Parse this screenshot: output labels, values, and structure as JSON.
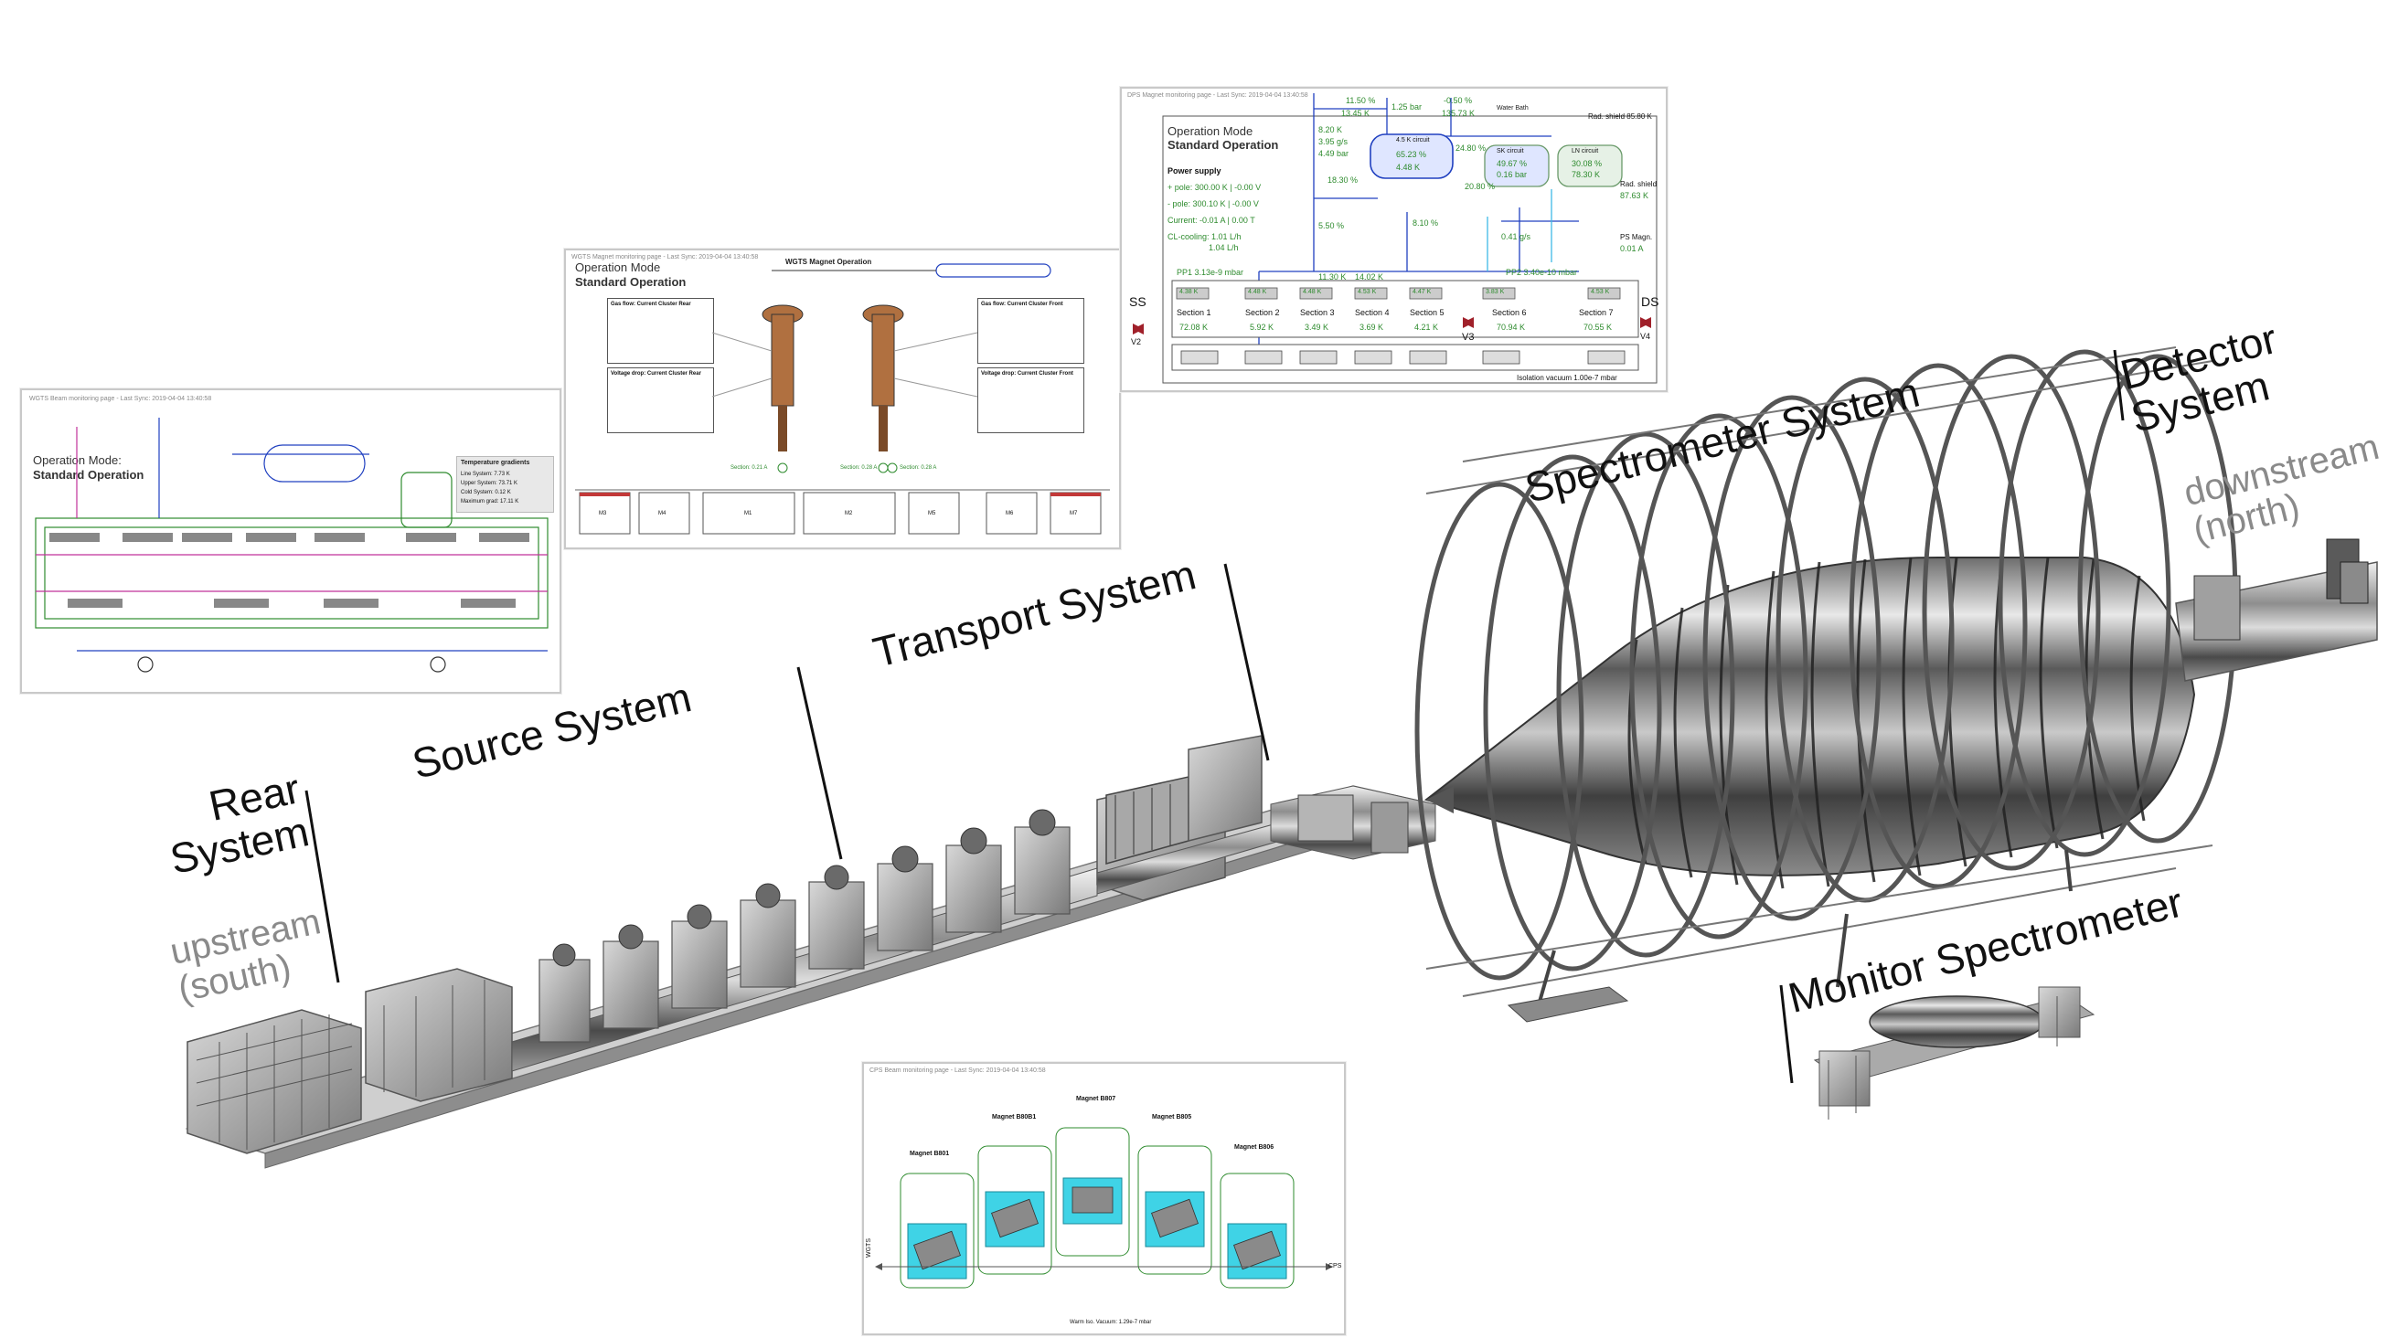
{
  "labels": {
    "rear_system": "Rear\nSystem",
    "upstream": "upstream\n(south)",
    "source_system": "Source System",
    "transport_system": "Transport System",
    "spectrometer_system": "Spectrometer System",
    "detector_system": "Detector\nSystem",
    "downstream": "downstream\n(north)",
    "monitor_spectrometer": "Monitor Spectrometer"
  },
  "panel_rear": {
    "header": "WGTS Beam monitoring page - Last Sync: 2019-04-04 13:40:58",
    "mode_label": "Operation Mode:",
    "mode_value": "Standard Operation",
    "temp_title": "Temperature gradients",
    "temp_rows": [
      "Line System: 7.73 K",
      "Upper System: 73.71 K",
      "Cold System: 0.12 K",
      "Maximum grad: 17.11 K"
    ]
  },
  "panel_wgts": {
    "header": "WGTS Magnet monitoring page - Last Sync: 2019-04-04 13:40:58",
    "mode_label": "Operation Mode",
    "mode_value": "Standard Operation",
    "title": "WGTS Magnet Operation",
    "box_left_title": "Gas flow: Current Cluster Rear",
    "box_right_title": "Gas flow: Current Cluster Front",
    "box_left2_title": "Voltage drop: Current Cluster Rear",
    "box_right2_title": "Voltage drop: Current Cluster Front",
    "magnets": [
      "M3",
      "M4",
      "M1",
      "M2",
      "M5",
      "M6",
      "M7"
    ],
    "readout_left": "Section: 0.21 A",
    "readout_mid": "Section: 0.28 A",
    "readout_right": "Section: 0.28 A"
  },
  "panel_dps": {
    "header": "DPS Magnet monitoring page - Last Sync: 2019-04-04 13:40:58",
    "mode_label": "Operation Mode",
    "mode_value": "Standard Operation",
    "power_supply": "Power supply",
    "plus_pole": "+ pole: 300.00 K | -0.00 V",
    "minus_pole": "- pole: 300.10 K | -0.00 V",
    "current": "Current: -0.01 A | 0.00 T",
    "cl_cooling": "CL-cooling: 1.01 L/h",
    "cl_cooling2": "1.04 L/h",
    "top_vals": [
      "11.50 %",
      "13.45 K",
      "1.25 bar",
      "-0.50 %",
      "135.73 K",
      "Water Bath"
    ],
    "left_vals": [
      "8.20 K",
      "3.95 g/s",
      "4.49 bar"
    ],
    "circuit_title": "4.5 K circuit",
    "circuit_vals": [
      "65.23 %",
      "4.48 K"
    ],
    "sk_circuit": "SK circuit",
    "sk_vals": [
      "49.67 %",
      "0.16 bar"
    ],
    "ln_circuit": "LN circuit",
    "ln_vals": [
      "30.08 %",
      "78.30 K"
    ],
    "rad_shield": "Rad. shield 85.80 K",
    "rad_shield2_label": "Rad. shield",
    "rad_shield2_val": "87.63 K",
    "ps_magn_label": "PS Magn.",
    "ps_magn_val": "0.01 A",
    "pct_a": "24.80 %",
    "pct_b": "18.30 %",
    "pct_c": "20.80 %",
    "pct_d": "5.50 %",
    "pct_e": "8.10 %",
    "gs": "0.41 g/s",
    "pp1": "PP1 3.13e-9 mbar",
    "pp2": "PP2 3.40e-10 mbar",
    "ss": "SS",
    "ds": "DS",
    "v2": "V2",
    "v3": "V3",
    "v4": "V4",
    "mid_vals": [
      "11.30 K",
      "14.02 K"
    ],
    "sensors": [
      "4.38 K",
      "4.48 K",
      "4.48 K",
      "4.53 K",
      "4.47 K",
      "3.83 K",
      "4.53 K"
    ],
    "sections": [
      {
        "name": "Section 1",
        "temp": "72.08 K"
      },
      {
        "name": "Section 2",
        "temp": "5.92 K"
      },
      {
        "name": "Section 3",
        "temp": "3.49 K"
      },
      {
        "name": "Section 4",
        "temp": "3.69 K"
      },
      {
        "name": "Section 5",
        "temp": "4.21 K"
      },
      {
        "name": "Section 6",
        "temp": "70.94 K"
      },
      {
        "name": "Section 7",
        "temp": "70.55 K"
      }
    ],
    "isolation": "Isolation vacuum 1.00e-7 mbar"
  },
  "panel_cps": {
    "header": "CPS Beam monitoring page - Last Sync: 2019-04-04 13:40:58",
    "magnets": [
      "Magnet B801",
      "Magnet B80B1",
      "Magnet B807",
      "Magnet B805",
      "Magnet B806"
    ],
    "left_tag": "WGTS",
    "right_tag": "CPS",
    "footer": "Warm Iso. Vacuum: 1.29e-7 mbar"
  },
  "colors": {
    "line_dark": "#111111",
    "label_light": "#8a8a8a",
    "status_green": "#2e8b2e",
    "pipe_blue": "#2040c0",
    "pipe_magenta": "#c0309a",
    "cps_cyan": "#3fd3e6",
    "valve_red": "#a0202a",
    "metal": "#9a9a9a"
  }
}
